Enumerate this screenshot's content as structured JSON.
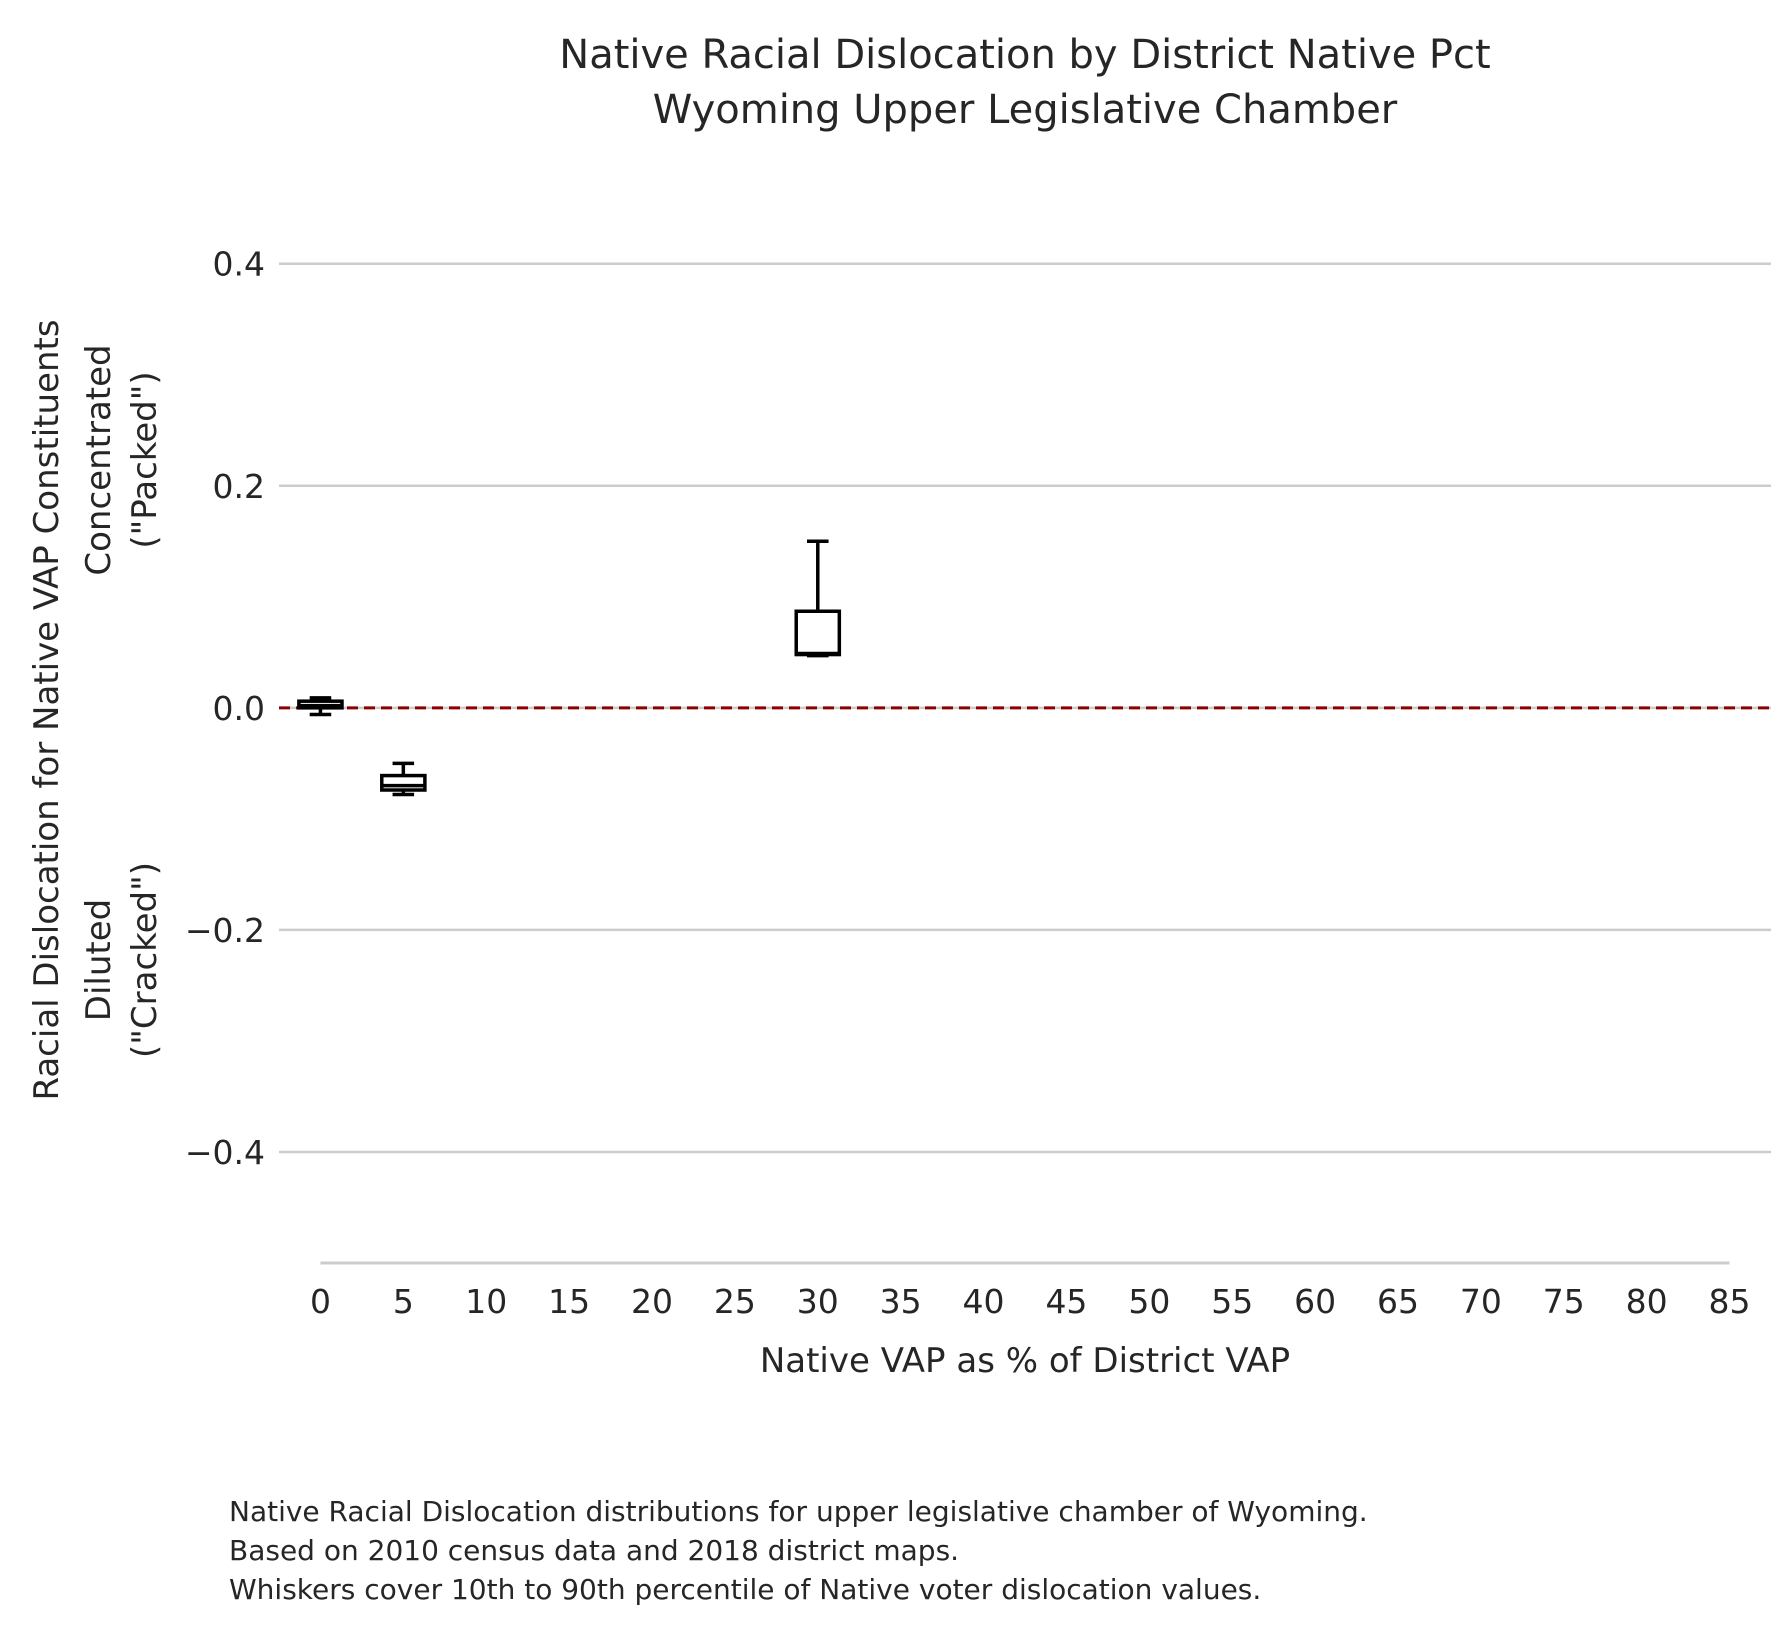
{
  "chart_data": {
    "type": "box",
    "title": "Native Racial Dislocation by District Native Pct",
    "subtitle": "Wyoming Upper Legislative Chamber",
    "xlabel": "Native VAP as % of District VAP",
    "ylabel_lines": [
      "Racial Dislocation for Native VAP Constituents",
      "Concentrated",
      "(\"Packed\")",
      "Diluted",
      "(\"Cracked\")"
    ],
    "xlim": [
      -2.5,
      87.5
    ],
    "ylim": [
      -0.5,
      0.47
    ],
    "x_ticks": [
      0,
      5,
      10,
      15,
      20,
      25,
      30,
      35,
      40,
      45,
      50,
      55,
      60,
      65,
      70,
      75,
      80,
      85
    ],
    "y_ticks": [
      0.4,
      0.2,
      0.0,
      -0.2,
      -0.4
    ],
    "y_tick_labels": [
      "0.4",
      "0.2",
      "0.0",
      "−0.2",
      "−0.4"
    ],
    "grid": "horizontal",
    "reference_line": {
      "y": 0.0,
      "style": "dashed",
      "color": "#8b0000"
    },
    "boxes": [
      {
        "x": 0,
        "whisker_low": -0.006,
        "q1": 0.0,
        "median": 0.002,
        "q3": 0.006,
        "whisker_high": 0.009
      },
      {
        "x": 5,
        "whisker_low": -0.078,
        "q1": -0.074,
        "median": -0.07,
        "q3": -0.061,
        "whisker_high": -0.05
      },
      {
        "x": 30,
        "whisker_low": 0.047,
        "q1": 0.048,
        "median": 0.049,
        "q3": 0.087,
        "whisker_high": 0.15
      }
    ],
    "caption_lines": [
      "Native Racial Dislocation distributions for upper legislative chamber of Wyoming.",
      "Based on 2010 census data and 2018 district maps.",
      "Whiskers cover 10th to 90th percentile of Native voter dislocation values."
    ]
  }
}
